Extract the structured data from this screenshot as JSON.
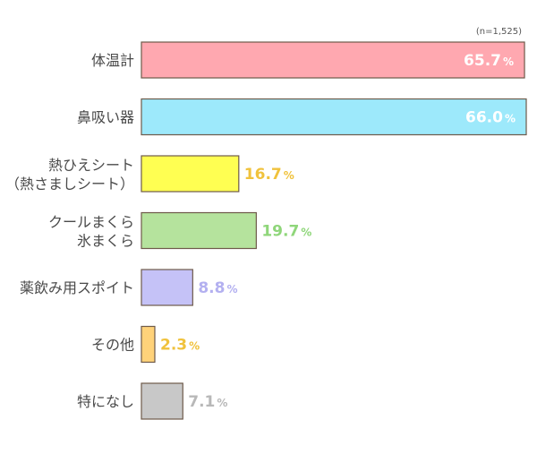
{
  "chart_data": {
    "type": "bar",
    "orientation": "horizontal",
    "note": "(n=1,525)",
    "categories": [
      [
        "体温計"
      ],
      [
        "鼻吸い器"
      ],
      [
        "熱ひえシート",
        "（熱さましシート）"
      ],
      [
        "クールまくら",
        "氷まくら"
      ],
      [
        "薬飲み用スポイト"
      ],
      [
        "その他"
      ],
      [
        "特になし"
      ]
    ],
    "values": [
      65.7,
      66.0,
      16.7,
      19.7,
      8.8,
      2.3,
      7.1
    ],
    "value_labels": [
      "65.7",
      "66.0",
      "16.7",
      "19.7",
      "8.8",
      "2.3",
      "7.1"
    ],
    "unit": "%",
    "colors": [
      "#ffa8b0",
      "#9de9fb",
      "#ffff52",
      "#b5e39d",
      "#c5c2f7",
      "#ffd27a",
      "#c8c8c8"
    ],
    "label_colors": [
      "#ffffff",
      "#ffffff",
      "#f0c23c",
      "#8fd67a",
      "#b3b0f0",
      "#f0c23c",
      "#b8b8b8"
    ],
    "xlim": [
      0,
      66.0
    ]
  }
}
